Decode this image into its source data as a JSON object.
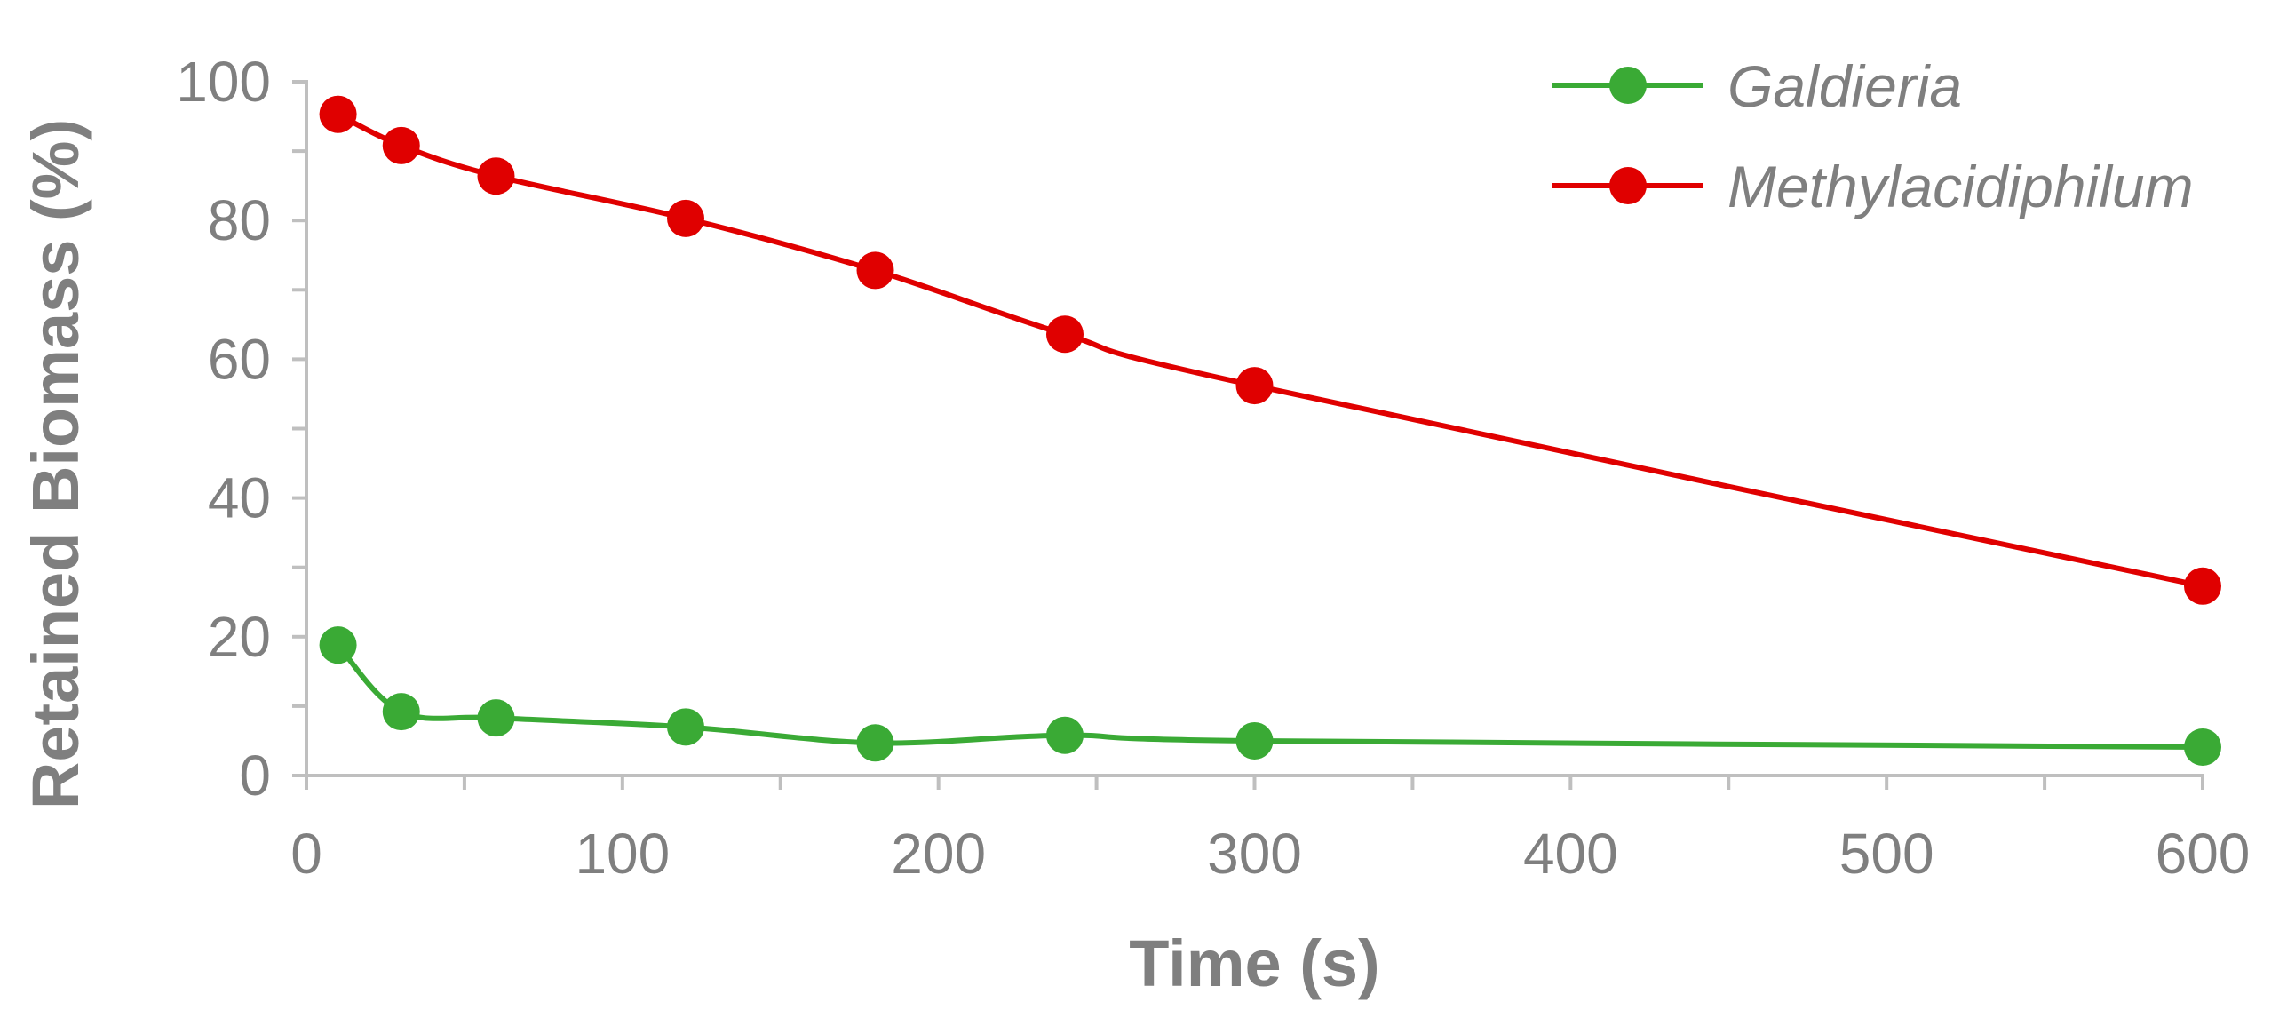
{
  "chart_data": {
    "type": "line",
    "title": "",
    "xlabel": "Time (s)",
    "ylabel": "Retained Biomass (%)",
    "xlim": [
      0,
      600
    ],
    "ylim": [
      0,
      100
    ],
    "x_ticks": [
      0,
      100,
      200,
      300,
      400,
      500,
      600
    ],
    "y_ticks": [
      0,
      20,
      40,
      60,
      80,
      100
    ],
    "grid": false,
    "legend_position": "top-right",
    "x": [
      10,
      30,
      60,
      120,
      180,
      240,
      300,
      600
    ],
    "series": [
      {
        "name": "Galdieria",
        "color": "#3aaa35",
        "values": [
          18.8,
          9.2,
          8.3,
          7.0,
          4.7,
          5.8,
          5.0,
          4.1
        ]
      },
      {
        "name": "Methylacidiphilum",
        "color": "#e00000",
        "values": [
          95.3,
          90.8,
          86.4,
          80.3,
          72.8,
          63.6,
          56.2,
          27.3
        ]
      }
    ],
    "axis_color": "#bfbfbf",
    "text_color": "#7f7f7f"
  }
}
